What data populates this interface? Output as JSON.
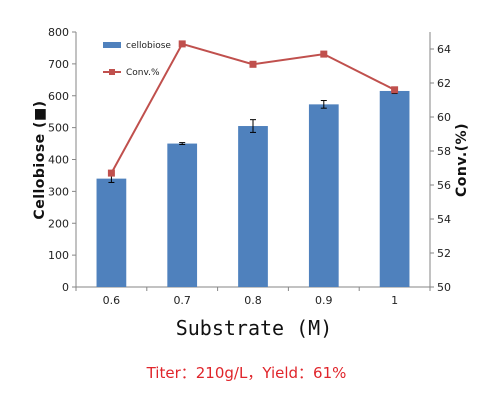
{
  "chart_data": {
    "type": "bar",
    "categories": [
      "0.6",
      "0.7",
      "0.8",
      "0.9",
      "1"
    ],
    "xlabel": "Substrate (M)",
    "ylabel": "Cellobiose (■)",
    "y2label": "Conv.(%)",
    "ylim": [
      0,
      800
    ],
    "yticks": [
      0,
      100,
      200,
      300,
      400,
      500,
      600,
      700,
      800
    ],
    "y2lim": [
      50,
      65
    ],
    "y2ticks": [
      50,
      52,
      54,
      56,
      58,
      60,
      62,
      64
    ],
    "grid": false,
    "legend_position": "top-left",
    "series": [
      {
        "name": "cellobiose",
        "type": "bar",
        "axis": "left",
        "color": "#4f81bd",
        "values": [
          340,
          450,
          505,
          573,
          615
        ],
        "errors": [
          12,
          3,
          20,
          12,
          8
        ]
      },
      {
        "name": "Conv.%",
        "type": "line",
        "axis": "right",
        "color": "#c0504d",
        "marker": "square",
        "values": [
          56.7,
          64.3,
          63.1,
          63.7,
          61.6
        ]
      }
    ]
  },
  "caption": "Titer：210g/L，Yield：61%"
}
